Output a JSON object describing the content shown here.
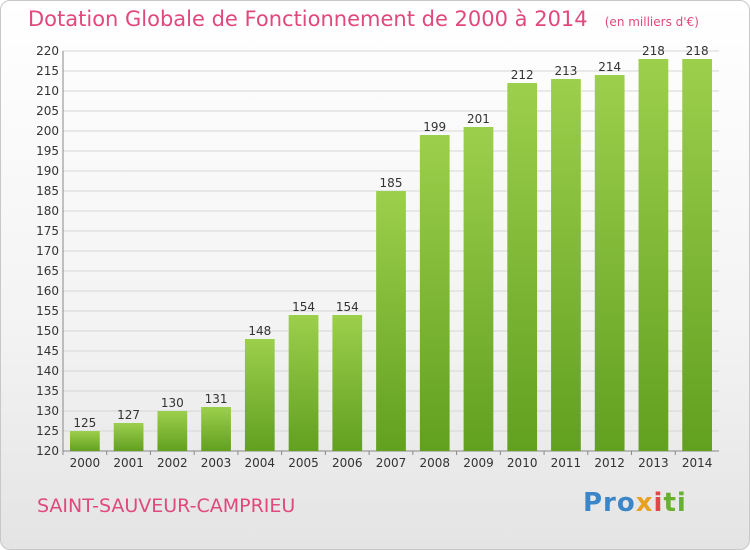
{
  "title": "Dotation Globale de Fonctionnement de 2000 à 2014",
  "unit": "(en milliers d'€)",
  "commune": "SAINT-SAUVEUR-CAMPRIEU",
  "logo": {
    "p1": "Pro",
    "p2": "x",
    "p3": "i",
    "p4": "ti"
  },
  "colors": {
    "title": "#e0487e",
    "bar_top": "#9ccf4c",
    "bar_bottom": "#62a020"
  },
  "chart_data": {
    "type": "bar",
    "categories": [
      "2000",
      "2001",
      "2002",
      "2003",
      "2004",
      "2005",
      "2006",
      "2007",
      "2008",
      "2009",
      "2010",
      "2011",
      "2012",
      "2013",
      "2014"
    ],
    "values": [
      125,
      127,
      130,
      131,
      148,
      154,
      154,
      185,
      199,
      201,
      212,
      213,
      214,
      218,
      218
    ],
    "title": "Dotation Globale de Fonctionnement de 2000 à 2014",
    "ylim": [
      120,
      220
    ],
    "yticks": [
      120,
      125,
      130,
      135,
      140,
      145,
      150,
      155,
      160,
      165,
      170,
      175,
      180,
      185,
      190,
      195,
      200,
      205,
      210,
      215,
      220
    ],
    "grid": true
  }
}
